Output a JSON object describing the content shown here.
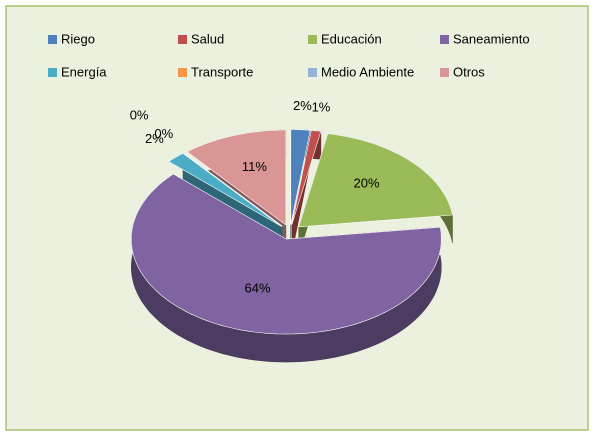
{
  "chart_data": {
    "type": "pie3d",
    "categories": [
      "Riego",
      "Salud",
      "Educación",
      "Saneamiento",
      "Energía",
      "Transporte",
      "Medio Ambiente",
      "Otros"
    ],
    "values": [
      2,
      1,
      20,
      64,
      2,
      0,
      0,
      11
    ],
    "value_labels": [
      "2%",
      "1%",
      "20%",
      "64%",
      "2%",
      "0%",
      "0%",
      "11%"
    ],
    "colors": [
      "#4f81bd",
      "#c0504d",
      "#9bbb59",
      "#8064a2",
      "#4bacc6",
      "#f79646",
      "#95b3d7",
      "#d99694"
    ],
    "legend": "top"
  }
}
